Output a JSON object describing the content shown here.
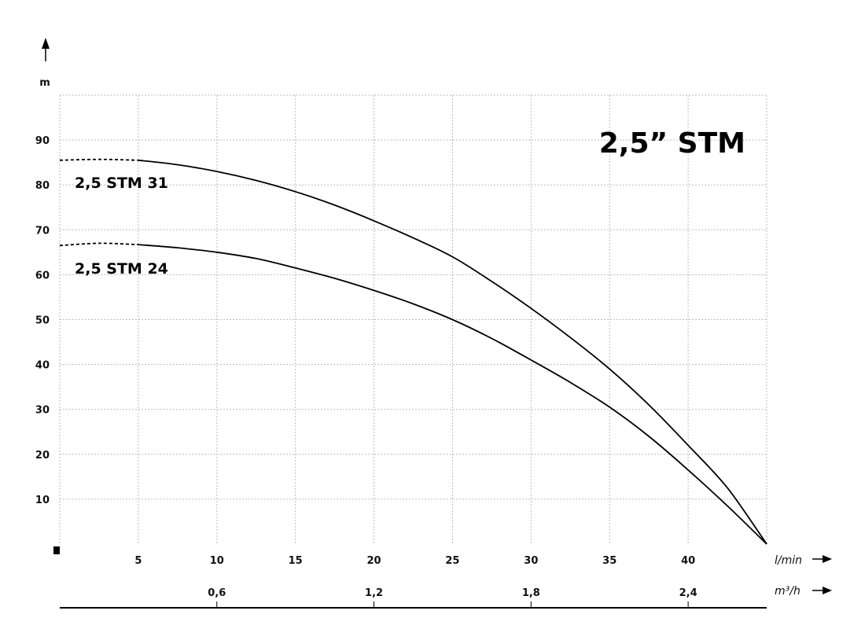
{
  "chart_data": {
    "type": "line",
    "title": "2,5” STM",
    "ylabel": "m",
    "xlabel": "l/min",
    "x2label": "m³/h",
    "ylim": [
      0,
      100
    ],
    "xlim": [
      0,
      45
    ],
    "y_ticks": [
      "10",
      "20",
      "30",
      "40",
      "50",
      "60",
      "70",
      "80",
      "90"
    ],
    "x_ticks": [
      "5",
      "10",
      "15",
      "20",
      "25",
      "30",
      "35",
      "40"
    ],
    "x2_ticks": [
      {
        "label": "0,6",
        "value": 10
      },
      {
        "label": "1,2",
        "value": 20
      },
      {
        "label": "1,8",
        "value": 30
      },
      {
        "label": "2,4",
        "value": 40
      }
    ],
    "grid": true,
    "series": [
      {
        "name": "2,5 STM 31",
        "dashed_until": 5,
        "x": [
          0,
          2.5,
          5,
          7.5,
          10,
          12.5,
          15,
          17.5,
          20,
          22.5,
          25,
          27.5,
          30,
          32.5,
          35,
          37.5,
          40,
          42.5,
          45
        ],
        "y": [
          85.5,
          85.7,
          85.5,
          84.5,
          83,
          81,
          78.5,
          75.5,
          72,
          68.2,
          64,
          58.5,
          52.5,
          46,
          39,
          31,
          22,
          12.5,
          0
        ]
      },
      {
        "name": "2,5 STM 24",
        "dashed_until": 5,
        "x": [
          0,
          2.5,
          5,
          7.5,
          10,
          12.5,
          15,
          17.5,
          20,
          22.5,
          25,
          27.5,
          30,
          32.5,
          35,
          37.5,
          40,
          42.5,
          45
        ],
        "y": [
          66.5,
          67,
          66.7,
          66,
          65,
          63.6,
          61.5,
          59.2,
          56.5,
          53.5,
          50,
          45.8,
          41,
          36,
          30.5,
          24,
          16.5,
          8.5,
          0
        ]
      }
    ]
  }
}
